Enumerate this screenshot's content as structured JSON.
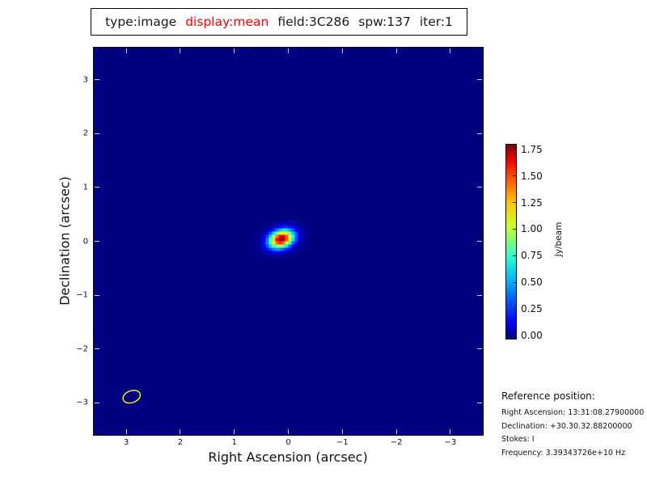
{
  "title": {
    "segments": [
      {
        "text": "type:image",
        "color": "#1a1a1a"
      },
      {
        "text": "display:mean",
        "color": "#fb0000"
      },
      {
        "text": "field:3C286",
        "color": "#1a1a1a"
      },
      {
        "text": "spw:137",
        "color": "#1a1a1a"
      },
      {
        "text": "iter:1",
        "color": "#1a1a1a"
      }
    ]
  },
  "axes": {
    "xlabel": "Right Ascension (arcsec)",
    "ylabel": "Declination (arcsec)",
    "xtick_labels": [
      "3",
      "2",
      "1",
      "0",
      "−1",
      "−2",
      "−3"
    ],
    "ytick_labels": [
      "3",
      "2",
      "1",
      "0",
      "−1",
      "−2",
      "−3"
    ]
  },
  "colorbar": {
    "label": "Jy/beam",
    "tick_labels": [
      "0.00",
      "0.25",
      "0.50",
      "0.75",
      "1.00",
      "1.25",
      "1.50",
      "1.75"
    ]
  },
  "reference": {
    "heading": "Reference position:",
    "lines": [
      "Right Ascension: 13:31:08.27900000",
      "Declination: +30.30.32.88200000",
      "Stokes: I",
      "Frequency: 3.39343726e+10 Hz"
    ]
  },
  "chart_data": {
    "type": "heatmap",
    "title": "type:image display:mean field:3C286 spw:137 iter:1",
    "xlabel": "Right Ascension (arcsec)",
    "ylabel": "Declination (arcsec)",
    "xlim": [
      3.6,
      -3.6
    ],
    "ylim": [
      -3.6,
      3.6
    ],
    "xtick_values": [
      3,
      2,
      1,
      0,
      -1,
      -2,
      -3
    ],
    "ytick_values": [
      3,
      2,
      1,
      0,
      -1,
      -2,
      -3
    ],
    "grid": false,
    "background_value": 0.0,
    "background_color": "#000082",
    "colormap": "jet",
    "colorbar": {
      "label": "Jy/beam",
      "tick_values": [
        0.0,
        0.25,
        0.5,
        0.75,
        1.0,
        1.25,
        1.5,
        1.75
      ],
      "range": [
        -0.02,
        1.8
      ],
      "position": "right"
    },
    "source": {
      "x_arcsec": 0.13,
      "y_arcsec": 0.04,
      "peak_jy_per_beam": 1.78,
      "sigma_major_arcsec": 0.165,
      "sigma_minor_arcsec": 0.112,
      "position_angle_deg": -20
    },
    "beam_ellipse": {
      "x_arcsec": 2.9,
      "y_arcsec": -2.89,
      "major_arcsec": 0.33,
      "minor_arcsec": 0.22,
      "angle_deg": -20,
      "color": "#ffff00"
    }
  }
}
